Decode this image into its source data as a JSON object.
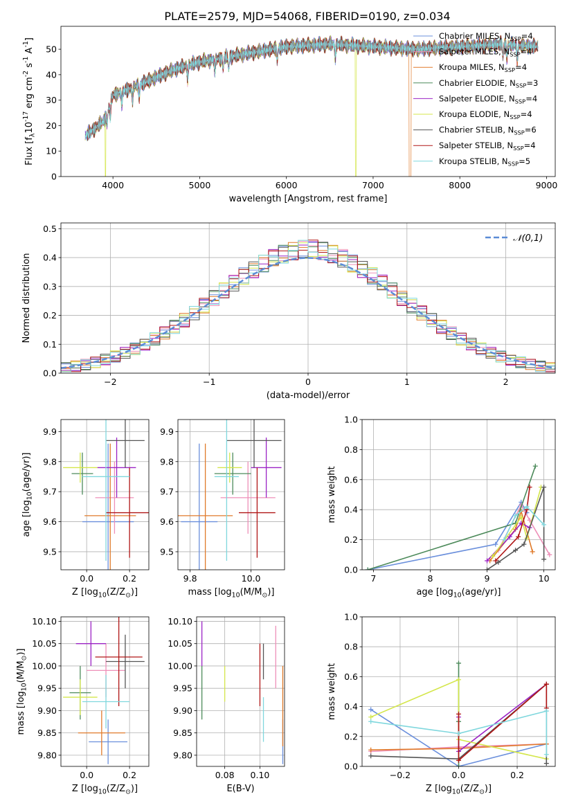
{
  "figure": {
    "title": "PLATE=2579, MJD=54068, FIBERID=0190, z=0.034"
  },
  "colors": [
    "#6a8fdc",
    "#ee8fb8",
    "#e07a2a",
    "#4c8a5a",
    "#9b22c5",
    "#d4e64a",
    "#555555",
    "#b01515",
    "#7fd7dd"
  ],
  "legend_labels": [
    "Chabrier MILES, N$_{SSP}$=4",
    "Salpeter MILES, N$_{SSP}$=4",
    "Kroupa MILES, N$_{SSP}$=4",
    "Chabrier ELODIE, N$_{SSP}$=3",
    "Salpeter ELODIE, N$_{SSP}$=4",
    "Kroupa ELODIE, N$_{SSP}$=4",
    "Chabrier STELIB, N$_{SSP}$=6",
    "Salpeter STELIB, N$_{SSP}$=4",
    "Kroupa STELIB, N$_{SSP}$=5"
  ],
  "chart_data": [
    {
      "id": "spectrum",
      "type": "line",
      "xlabel": "wavelength [Angstrom, rest frame]",
      "ylabel": "Flux [f$_\\lambda$10$^{-17}$ erg cm$^{-2}$ s$^{-1}$ A$^{-1}$]",
      "xlim": [
        3400,
        9100
      ],
      "ylim": [
        0,
        59
      ],
      "xticks": [
        4000,
        5000,
        6000,
        7000,
        8000,
        9000
      ],
      "yticks": [
        0,
        10,
        20,
        30,
        40,
        50
      ],
      "grid": false,
      "legend_position": "right",
      "continuum_anchors": {
        "wavelength": [
          3650,
          3900,
          4000,
          4300,
          4700,
          5000,
          5500,
          6000,
          6500,
          7000,
          7500,
          8000,
          8500,
          8900
        ],
        "flux": [
          15,
          22,
          32,
          36,
          42,
          45,
          48,
          51,
          52,
          51,
          50,
          51,
          52,
          51
        ]
      },
      "line_dips": [
        3934,
        3969,
        4102,
        4226,
        4304,
        4861,
        5175,
        5270,
        5335,
        5895,
        6563,
        8498,
        8542,
        8662
      ],
      "dropouts": [
        {
          "series": 5,
          "wavelength": 3915
        },
        {
          "series": 5,
          "wavelength": 6800
        },
        {
          "series": 2,
          "wavelength": 7420
        }
      ]
    },
    {
      "id": "residual-histogram",
      "type": "histogram",
      "xlabel": "(data-model)/error",
      "ylabel": "Normed distribution",
      "xlim": [
        -2.5,
        2.5
      ],
      "ylim": [
        0,
        0.52
      ],
      "xticks": [
        -2,
        -1,
        0,
        1,
        2
      ],
      "yticks": [
        0.0,
        0.1,
        0.2,
        0.3,
        0.4,
        0.5
      ],
      "grid": true,
      "bin_width": 0.1,
      "reference_curve": {
        "name": "$\\mathcal{N}(0,1)$",
        "mean": 0,
        "sigma": 1,
        "style": "dashed"
      },
      "legend_position": "top-right"
    },
    {
      "id": "age-vs-z",
      "type": "errorbar",
      "xlabel": "Z [log$_{10}$(Z/Z$_\\odot$)]",
      "ylabel": "age  [log$_{10}$(age/yr)]",
      "xlim": [
        -0.12,
        0.29
      ],
      "ylim": [
        9.44,
        9.94
      ],
      "xticks": [
        0.0,
        0.2
      ],
      "yticks": [
        9.5,
        9.6,
        9.7,
        9.8,
        9.9
      ],
      "grid": true,
      "points": [
        {
          "x": 0.1,
          "xerr": 0.12,
          "y": 9.6,
          "yerr": 0.26
        },
        {
          "x": 0.13,
          "xerr": 0.09,
          "y": 9.68,
          "yerr": 0.12
        },
        {
          "x": 0.11,
          "xerr": 0.12,
          "y": 9.62,
          "yerr": 0.24
        },
        {
          "x": -0.02,
          "xerr": 0.05,
          "y": 9.76,
          "yerr": 0.07
        },
        {
          "x": 0.14,
          "xerr": 0.09,
          "y": 9.78,
          "yerr": 0.1
        },
        {
          "x": -0.03,
          "xerr": 0.08,
          "y": 9.78,
          "yerr": 0.05
        },
        {
          "x": 0.18,
          "xerr": 0.09,
          "y": 9.87,
          "yerr": 0.09
        },
        {
          "x": 0.2,
          "xerr": 0.11,
          "y": 9.63,
          "yerr": 0.15
        },
        {
          "x": 0.09,
          "xerr": 0.11,
          "y": 9.75,
          "yerr": 0.28
        }
      ]
    },
    {
      "id": "age-vs-mass",
      "type": "errorbar",
      "xlabel": "mass [log$_{10}$(M/M$_\\odot$)]",
      "ylabel": "",
      "xlim": [
        9.76,
        10.11
      ],
      "ylim": [
        9.44,
        9.94
      ],
      "xticks": [
        9.8,
        10.0
      ],
      "yticks": [
        9.5,
        9.6,
        9.7,
        9.8,
        9.9
      ],
      "grid": true,
      "points": [
        {
          "x": 9.83,
          "xerr": 0.06,
          "y": 9.6,
          "yerr": 0.26
        },
        {
          "x": 9.99,
          "xerr": 0.09,
          "y": 9.68,
          "yerr": 0.12
        },
        {
          "x": 9.85,
          "xerr": 0.09,
          "y": 9.62,
          "yerr": 0.24
        },
        {
          "x": 9.94,
          "xerr": 0.06,
          "y": 9.76,
          "yerr": 0.07
        },
        {
          "x": 10.05,
          "xerr": 0.05,
          "y": 9.78,
          "yerr": 0.1
        },
        {
          "x": 9.93,
          "xerr": 0.04,
          "y": 9.78,
          "yerr": 0.05
        },
        {
          "x": 10.01,
          "xerr": 0.09,
          "y": 9.87,
          "yerr": 0.09
        },
        {
          "x": 10.02,
          "xerr": 0.06,
          "y": 9.63,
          "yerr": 0.15
        },
        {
          "x": 9.92,
          "xerr": 0.04,
          "y": 9.75,
          "yerr": 0.28
        }
      ]
    },
    {
      "id": "mass-weight-vs-age",
      "type": "line",
      "xlabel": "age  [log$_{10}$(age/yr)]",
      "ylabel": "mass weight",
      "xlim": [
        6.8,
        10.2
      ],
      "ylim": [
        0,
        1.0
      ],
      "xticks": [
        7,
        8,
        9,
        10
      ],
      "yticks": [
        0.0,
        0.2,
        0.4,
        0.6,
        0.8,
        1.0
      ],
      "grid": true,
      "series": [
        {
          "x": [
            6.9,
            9.15,
            9.6,
            9.7
          ],
          "y": [
            0.0,
            0.17,
            0.45,
            0.38
          ]
        },
        {
          "x": [
            9.2,
            9.6,
            9.75,
            10.1
          ],
          "y": [
            0.13,
            0.43,
            0.33,
            0.1
          ]
        },
        {
          "x": [
            9.05,
            9.5,
            9.6,
            9.8
          ],
          "y": [
            0.06,
            0.27,
            0.39,
            0.12
          ]
        },
        {
          "x": [
            6.9,
            9.5,
            9.85
          ],
          "y": [
            0.0,
            0.31,
            0.69
          ]
        },
        {
          "x": [
            9.0,
            9.4,
            9.6,
            9.75
          ],
          "y": [
            0.06,
            0.22,
            0.31,
            0.28
          ]
        },
        {
          "x": [
            9.1,
            9.6,
            9.7,
            9.95
          ],
          "y": [
            0.09,
            0.35,
            0.21,
            0.55
          ]
        },
        {
          "x": [
            9.0,
            9.2,
            9.5,
            9.65,
            10.0,
            10.0
          ],
          "y": [
            0.0,
            0.05,
            0.13,
            0.17,
            0.55,
            0.07
          ]
        },
        {
          "x": [
            9.15,
            9.55,
            9.7,
            9.75
          ],
          "y": [
            0.06,
            0.22,
            0.4,
            0.55
          ]
        },
        {
          "x": [
            9.3,
            9.5,
            9.7,
            10.0
          ],
          "y": [
            0.2,
            0.36,
            0.42,
            0.3
          ]
        }
      ]
    },
    {
      "id": "mass-vs-z",
      "type": "errorbar",
      "xlabel": "Z [log$_{10}$(Z/Z$_\\odot$)]",
      "ylabel": "mass [log$_{10}$(M/M$_\\odot$)]",
      "xlim": [
        -0.12,
        0.29
      ],
      "ylim": [
        9.775,
        10.11
      ],
      "xticks": [
        0.0,
        0.2
      ],
      "yticks": [
        9.8,
        9.85,
        9.9,
        9.95,
        10.0,
        10.05,
        10.1
      ],
      "grid": true,
      "points": [
        {
          "x": 0.1,
          "xerr": 0.09,
          "y": 9.83,
          "yerr": 0.05
        },
        {
          "x": 0.09,
          "xerr": 0.09,
          "y": 9.99,
          "yerr": 0.06
        },
        {
          "x": 0.07,
          "xerr": 0.11,
          "y": 9.85,
          "yerr": 0.05
        },
        {
          "x": -0.03,
          "xerr": 0.05,
          "y": 9.94,
          "yerr": 0.06
        },
        {
          "x": 0.02,
          "xerr": 0.07,
          "y": 10.05,
          "yerr": 0.05
        },
        {
          "x": -0.03,
          "xerr": 0.08,
          "y": 9.93,
          "yerr": 0.04
        },
        {
          "x": 0.18,
          "xerr": 0.09,
          "y": 10.01,
          "yerr": 0.06
        },
        {
          "x": 0.15,
          "xerr": 0.11,
          "y": 10.02,
          "yerr": 0.11
        },
        {
          "x": 0.09,
          "xerr": 0.11,
          "y": 9.92,
          "yerr": 0.06
        }
      ]
    },
    {
      "id": "mass-vs-ebv",
      "type": "errorbar",
      "xlabel": "E(B-V)",
      "ylabel": "",
      "xlim": [
        0.064,
        0.114
      ],
      "ylim": [
        9.775,
        10.11
      ],
      "xticks": [
        0.08,
        0.1
      ],
      "yticks": [
        9.8,
        9.85,
        9.9,
        9.95,
        10.0,
        10.05,
        10.1
      ],
      "grid": true,
      "points": [
        {
          "x": 0.113,
          "y": 9.83,
          "yerr": 0.05
        },
        {
          "x": 0.109,
          "y": 10.02,
          "yerr": 0.07
        },
        {
          "x": 0.113,
          "y": 9.91,
          "yerr": 0.09
        },
        {
          "x": 0.067,
          "y": 9.94,
          "yerr": 0.06
        },
        {
          "x": 0.067,
          "y": 10.05,
          "yerr": 0.05
        },
        {
          "x": 0.08,
          "y": 9.96,
          "yerr": 0.04
        },
        {
          "x": 0.102,
          "y": 10.01,
          "yerr": 0.04
        },
        {
          "x": 0.1,
          "y": 9.98,
          "yerr": 0.07
        },
        {
          "x": 0.102,
          "y": 9.88,
          "yerr": 0.05
        }
      ]
    },
    {
      "id": "mass-weight-vs-z",
      "type": "line",
      "xlabel": "Z [log$_{10}$(Z/Z$_\\odot$)]",
      "ylabel": "mass weight",
      "xlim": [
        -0.33,
        0.33
      ],
      "ylim": [
        0,
        1.0
      ],
      "xticks": [
        -0.2,
        0.0,
        0.2
      ],
      "yticks": [
        0.0,
        0.2,
        0.4,
        0.6,
        0.8,
        1.0
      ],
      "grid": true,
      "series": [
        {
          "x": [
            -0.3,
            0.0,
            0.3
          ],
          "y": [
            0.38,
            0.0,
            0.15
          ]
        },
        {
          "x": [
            -0.3,
            0.0,
            0.3
          ],
          "y": [
            0.1,
            0.13,
            0.15
          ]
        },
        {
          "x": [
            -0.3,
            0.0,
            0.3
          ],
          "y": [
            0.11,
            0.12,
            0.15
          ]
        },
        {
          "x": [
            0.0,
            0.0,
            0.0
          ],
          "y": [
            0.69,
            0.3,
            0.0
          ]
        },
        {
          "x": [
            0.0,
            0.0,
            0.3
          ],
          "y": [
            0.33,
            0.1,
            0.55
          ]
        },
        {
          "x": [
            -0.3,
            0.0,
            0.0,
            0.3
          ],
          "y": [
            0.33,
            0.58,
            0.18,
            0.05
          ]
        },
        {
          "x": [
            -0.3,
            0.0,
            0.3,
            0.3
          ],
          "y": [
            0.07,
            0.05,
            0.55,
            0.02
          ]
        },
        {
          "x": [
            0.0,
            0.0,
            0.3,
            0.3
          ],
          "y": [
            0.35,
            0.04,
            0.55,
            0.39
          ]
        },
        {
          "x": [
            -0.3,
            0.0,
            0.3,
            0.3
          ],
          "y": [
            0.3,
            0.22,
            0.37,
            0.08
          ]
        }
      ]
    }
  ]
}
